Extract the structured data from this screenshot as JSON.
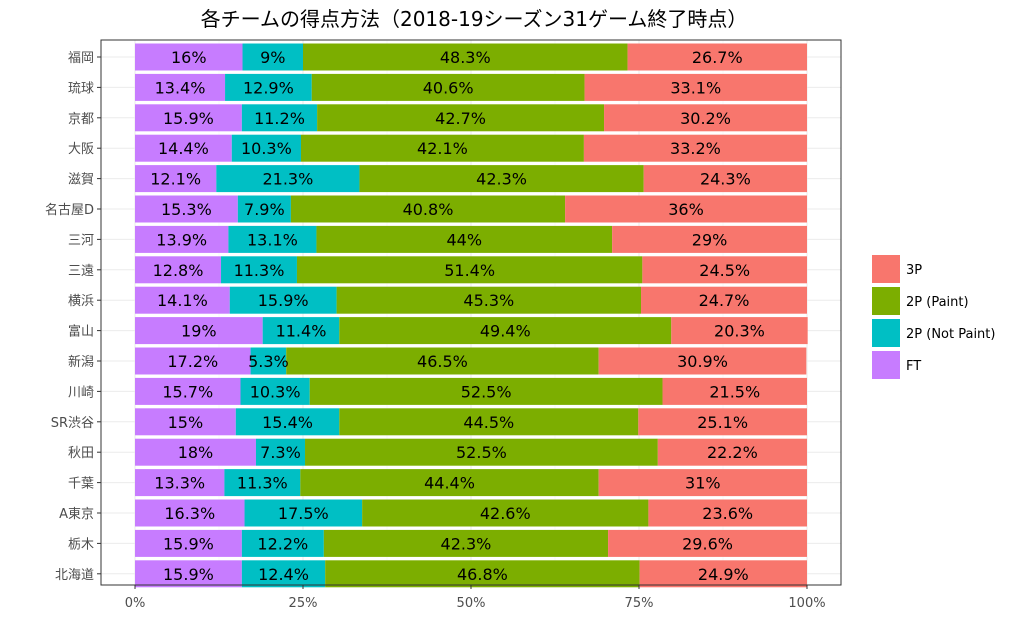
{
  "chart_data": {
    "type": "bar",
    "orientation": "horizontal",
    "stacked": true,
    "title": "各チームの得点方法（2018-19シーズン31ゲーム終了時点）",
    "xlabel": "",
    "ylabel": "",
    "xlim": [
      0,
      100
    ],
    "x_ticks": [
      "0%",
      "25%",
      "50%",
      "75%",
      "100%"
    ],
    "x_tick_values": [
      0,
      25,
      50,
      75,
      100
    ],
    "grid": true,
    "legend_position": "right",
    "categories": [
      "福岡",
      "琉球",
      "京都",
      "大阪",
      "滋賀",
      "名古屋D",
      "三河",
      "三遠",
      "横浜",
      "富山",
      "新潟",
      "川崎",
      "SR渋谷",
      "秋田",
      "千葉",
      "A東京",
      "栃木",
      "北海道"
    ],
    "series": [
      {
        "name": "FT",
        "color": "#C77CFF",
        "values": [
          16,
          13.4,
          15.9,
          14.4,
          12.1,
          15.3,
          13.9,
          12.8,
          14.1,
          19,
          17.2,
          15.7,
          15,
          18,
          13.3,
          16.3,
          15.9,
          15.9
        ],
        "labels": [
          "16%",
          "13.4%",
          "15.9%",
          "14.4%",
          "12.1%",
          "15.3%",
          "13.9%",
          "12.8%",
          "14.1%",
          "19%",
          "17.2%",
          "15.7%",
          "15%",
          "18%",
          "13.3%",
          "16.3%",
          "15.9%",
          "15.9%"
        ]
      },
      {
        "name": "2P (Not Paint)",
        "color": "#00BFC4",
        "values": [
          9,
          12.9,
          11.2,
          10.3,
          21.3,
          7.9,
          13.1,
          11.3,
          15.9,
          11.4,
          5.3,
          10.3,
          15.4,
          7.3,
          11.3,
          17.5,
          12.2,
          12.4
        ],
        "labels": [
          "9%",
          "12.9%",
          "11.2%",
          "10.3%",
          "21.3%",
          "7.9%",
          "13.1%",
          "11.3%",
          "15.9%",
          "11.4%",
          "5.3%",
          "10.3%",
          "15.4%",
          "7.3%",
          "11.3%",
          "17.5%",
          "12.2%",
          "12.4%"
        ]
      },
      {
        "name": "2P (Paint)",
        "color": "#7CAE00",
        "values": [
          48.3,
          40.6,
          42.7,
          42.1,
          42.3,
          40.8,
          44,
          51.4,
          45.3,
          49.4,
          46.5,
          52.5,
          44.5,
          52.5,
          44.4,
          42.6,
          42.3,
          46.8
        ],
        "labels": [
          "48.3%",
          "40.6%",
          "42.7%",
          "42.1%",
          "42.3%",
          "40.8%",
          "44%",
          "51.4%",
          "45.3%",
          "49.4%",
          "46.5%",
          "52.5%",
          "44.5%",
          "52.5%",
          "44.4%",
          "42.6%",
          "42.3%",
          "46.8%"
        ]
      },
      {
        "name": "3P",
        "color": "#F8766D",
        "values": [
          26.7,
          33.1,
          30.2,
          33.2,
          24.3,
          36,
          29,
          24.5,
          24.7,
          20.3,
          30.9,
          21.5,
          25.1,
          22.2,
          31,
          23.6,
          29.6,
          24.9
        ],
        "labels": [
          "26.7%",
          "33.1%",
          "30.2%",
          "33.2%",
          "24.3%",
          "36%",
          "29%",
          "24.5%",
          "24.7%",
          "20.3%",
          "30.9%",
          "21.5%",
          "25.1%",
          "22.2%",
          "31%",
          "23.6%",
          "29.6%",
          "24.9%"
        ]
      }
    ],
    "legend_order": [
      "3P",
      "2P (Paint)",
      "2P (Not Paint)",
      "FT"
    ]
  }
}
